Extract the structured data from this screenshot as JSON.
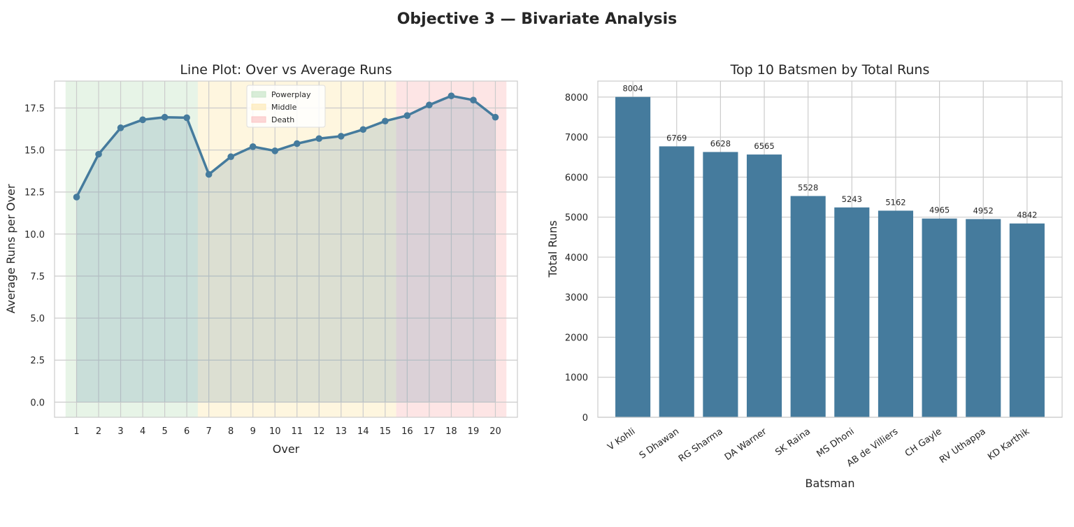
{
  "figure": {
    "title": "Objective 3 — Bivariate Analysis"
  },
  "chart_data": [
    {
      "type": "line",
      "title": "Line Plot: Over vs Average Runs",
      "xlabel": "Over",
      "ylabel": "Average Runs per Over",
      "x": [
        1,
        2,
        3,
        4,
        5,
        6,
        7,
        8,
        9,
        10,
        11,
        12,
        13,
        14,
        15,
        16,
        17,
        18,
        19,
        20
      ],
      "xticks": [
        "1",
        "2",
        "3",
        "4",
        "5",
        "6",
        "7",
        "8",
        "9",
        "10",
        "11",
        "12",
        "13",
        "14",
        "15",
        "16",
        "17",
        "18",
        "19",
        "20"
      ],
      "series": [
        {
          "values": [
            12.2,
            14.75,
            16.32,
            16.8,
            16.95,
            16.92,
            13.55,
            14.6,
            15.2,
            14.95,
            15.38,
            15.68,
            15.82,
            16.22,
            16.72,
            17.05,
            17.68,
            18.22,
            17.97,
            16.95
          ],
          "color": "#457b9d"
        }
      ],
      "ylim": [
        -0.9,
        19.1
      ],
      "yticks": [
        "0.0",
        "2.5",
        "5.0",
        "7.5",
        "10.0",
        "12.5",
        "15.0",
        "17.5"
      ],
      "ytick_values": [
        0,
        2.5,
        5,
        7.5,
        10,
        12.5,
        15,
        17.5
      ],
      "xlim": [
        0.0,
        21.0
      ],
      "fill_under": true,
      "grid": true,
      "legend": {
        "placement": "top-center",
        "entries": [
          {
            "label": "Powerplay",
            "color": "#c9e6c9"
          },
          {
            "label": "Middle",
            "color": "#fdeab8"
          },
          {
            "label": "Death",
            "color": "#fbc6c6"
          }
        ]
      },
      "phases": [
        {
          "name": "Powerplay",
          "from": 0.5,
          "to": 6.5,
          "color": "#c9e6c9"
        },
        {
          "name": "Middle",
          "from": 6.5,
          "to": 15.5,
          "color": "#fdeab8"
        },
        {
          "name": "Death",
          "from": 15.5,
          "to": 20.5,
          "color": "#fbc6c6"
        }
      ]
    },
    {
      "type": "bar",
      "title": "Top 10 Batsmen by Total Runs",
      "xlabel": "Batsman",
      "ylabel": "Total Runs",
      "categories": [
        "V Kohli",
        "S Dhawan",
        "RG Sharma",
        "DA Warner",
        "SK Raina",
        "MS Dhoni",
        "AB de Villiers",
        "CH Gayle",
        "RV Uthappa",
        "KD Karthik"
      ],
      "values": [
        8004,
        6769,
        6628,
        6565,
        5528,
        5243,
        5162,
        4965,
        4952,
        4842
      ],
      "data_labels": [
        "8004",
        "6769",
        "6628",
        "6565",
        "5528",
        "5243",
        "5162",
        "4965",
        "4952",
        "4842"
      ],
      "ylim": [
        0,
        8400
      ],
      "yticks": [
        "0",
        "1000",
        "2000",
        "3000",
        "4000",
        "5000",
        "6000",
        "7000",
        "8000"
      ],
      "ytick_values": [
        0,
        1000,
        2000,
        3000,
        4000,
        5000,
        6000,
        7000,
        8000
      ],
      "color": "#457b9d",
      "grid": true
    }
  ]
}
